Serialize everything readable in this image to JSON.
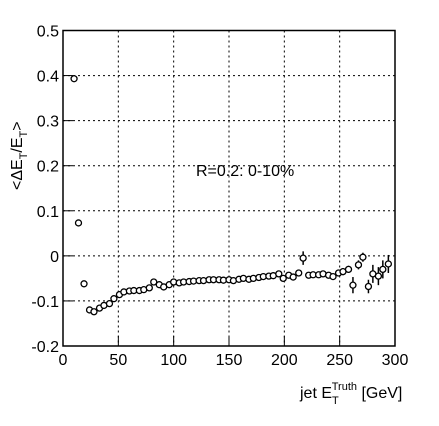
{
  "chart_data": {
    "type": "scatter",
    "annotation": "R=0.2: 0-10%",
    "x_label": [
      "jet E",
      "T",
      "Truth",
      " [GeV]"
    ],
    "y_label": [
      "<ΔE",
      "T",
      "/E",
      "T",
      ">"
    ],
    "x": [
      10,
      14,
      19,
      24,
      28,
      33,
      37,
      42,
      46,
      51,
      55,
      60,
      64,
      69,
      73,
      78,
      82,
      87,
      91,
      96,
      100,
      105,
      109,
      114,
      118,
      123,
      127,
      132,
      136,
      141,
      145,
      150,
      154,
      159,
      163,
      168,
      172,
      177,
      181,
      186,
      190,
      195,
      199,
      204,
      208,
      213,
      217,
      222,
      226,
      231,
      235,
      240,
      244,
      249,
      253,
      258,
      262,
      267,
      271,
      276,
      280,
      285,
      289,
      294
    ],
    "values": [
      0.393,
      0.073,
      -0.062,
      -0.12,
      -0.124,
      -0.116,
      -0.11,
      -0.106,
      -0.095,
      -0.086,
      -0.08,
      -0.078,
      -0.077,
      -0.077,
      -0.075,
      -0.071,
      -0.058,
      -0.064,
      -0.069,
      -0.064,
      -0.058,
      -0.06,
      -0.058,
      -0.057,
      -0.056,
      -0.055,
      -0.055,
      -0.053,
      -0.053,
      -0.053,
      -0.054,
      -0.053,
      -0.055,
      -0.052,
      -0.05,
      -0.052,
      -0.05,
      -0.048,
      -0.046,
      -0.045,
      -0.044,
      -0.04,
      -0.05,
      -0.043,
      -0.047,
      -0.038,
      -0.005,
      -0.043,
      -0.042,
      -0.042,
      -0.04,
      -0.043,
      -0.046,
      -0.038,
      -0.035,
      -0.03,
      -0.065,
      -0.02,
      -0.003,
      -0.068,
      -0.04,
      -0.045,
      -0.03,
      -0.018
    ],
    "errors": [
      0.005,
      0.005,
      0.005,
      0.005,
      0.005,
      0.005,
      0.005,
      0.005,
      0.005,
      0.005,
      0.005,
      0.005,
      0.005,
      0.005,
      0.005,
      0.005,
      0.005,
      0.005,
      0.005,
      0.005,
      0.005,
      0.005,
      0.005,
      0.005,
      0.005,
      0.005,
      0.005,
      0.005,
      0.005,
      0.005,
      0.005,
      0.005,
      0.005,
      0.005,
      0.005,
      0.005,
      0.005,
      0.005,
      0.005,
      0.005,
      0.005,
      0.005,
      0.005,
      0.005,
      0.005,
      0.005,
      0.015,
      0.005,
      0.005,
      0.005,
      0.005,
      0.005,
      0.005,
      0.005,
      0.008,
      0.008,
      0.018,
      0.01,
      0.01,
      0.015,
      0.02,
      0.02,
      0.02,
      0.02
    ],
    "color": "#000000",
    "xlim": [
      0,
      300
    ],
    "xticks": [
      0,
      50,
      100,
      150,
      200,
      250,
      300
    ],
    "ylim": [
      -0.2,
      0.5
    ],
    "yticks": [
      -0.2,
      -0.1,
      0,
      0.1,
      0.2,
      0.3,
      0.4,
      0.5
    ],
    "grid": true
  }
}
